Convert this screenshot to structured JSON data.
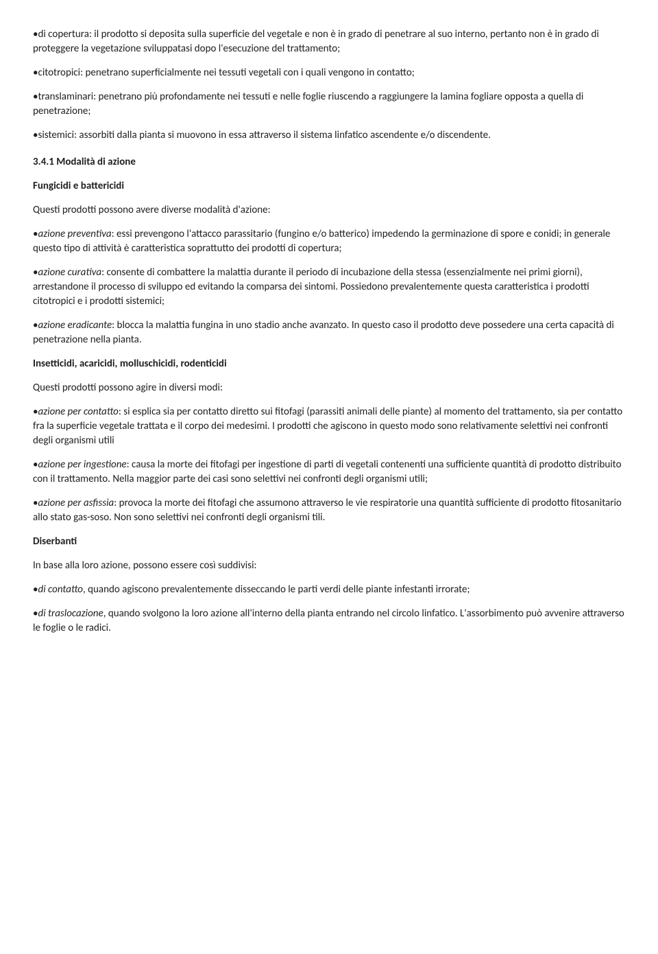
{
  "p1": "•di copertura: il prodotto si deposita sulla superficie del vegetale e non è in grado di penetrare al suo interno, pertanto non è in grado di proteggere la vegetazione sviluppatasi dopo l'esecuzione del trattamento;",
  "p2": "•citotropici: penetrano superficialmente nei tessuti vegetali con i quali vengono in contatto;",
  "p3": "•translaminari: penetrano più profondamente nei tessuti e nelle foglie riuscendo a raggiungere la lamina fogliare opposta a quella di penetrazione;",
  "p4": "•sistemici: assorbiti dalla pianta si muovono in essa attraverso il sistema linfatico ascendente e/o discendente.",
  "h1": "3.4.1 Modalità di azione",
  "h2": "Fungicidi e battericidi",
  "p5": "Questi prodotti possono avere diverse modalità d'azione:",
  "p6a": "•",
  "p6i": "azione preventiva",
  "p6b": ": essi prevengono l'attacco parassitario (fungino e/o batterico) impedendo la germinazione di spore e conidi; in generale questo tipo di attività è caratteristica soprattutto dei prodotti di copertura;",
  "p7a": "•",
  "p7i": "azione curativa",
  "p7b": ": consente di combattere la malattia durante il periodo di incubazione della stessa (essenzialmente nei primi giorni), arrestandone il processo di sviluppo ed evitando la comparsa dei sintomi. Possiedono prevalentemente questa caratteristica i prodotti citotropici e i prodotti sistemici;",
  "p8a": "•",
  "p8i": "azione eradicante",
  "p8b": ": blocca la malattia fungina in uno stadio anche avanzato. In questo caso il prodotto deve possedere una certa capacità di penetrazione nella pianta.",
  "h3": "Insetticidi, acaricidi, molluschicidi, rodenticidi",
  "p9": "Questi prodotti possono agire in diversi modi:",
  "p10a": "•",
  "p10i": "azione per contatto",
  "p10b": ": si esplica sia per contatto diretto sui fitofagi (parassiti animali delle piante) al momento del trattamento, sia per contatto fra la superficie vegetale trattata e il corpo dei medesimi. I prodotti che agiscono in questo modo sono relativamente selettivi nei confronti degli organismi utili",
  "p11a": "•",
  "p11i": "azione per ingestione",
  "p11b": ": causa la morte dei fitofagi per ingestione di parti di vegetali contenenti una sufficiente quantità di prodotto distribuito con il trattamento. Nella maggior parte dei casi sono selettivi nei confronti degli organismi utili;",
  "p12a": "•",
  "p12i": "azione per asfissia",
  "p12b": ": provoca la morte dei fitofagi che assumono attraverso le vie respiratorie una quantità sufficiente di prodotto fitosanitario allo stato gas-soso. Non sono selettivi nei confronti degli organismi tili.",
  "h4": "Diserbanti",
  "p13": "In base alla loro azione, possono essere così suddivisi:",
  "p14a": "•",
  "p14i": "di contatto",
  "p14b": ", quando agiscono prevalentemente disseccando le parti verdi delle piante infestanti irrorate;",
  "p15a": "•",
  "p15i": "di traslocazione",
  "p15b": ", quando svolgono la loro azione all'interno della pianta entrando nel circolo linfatico. L'assorbimento può avvenire attraverso le foglie o le radici."
}
